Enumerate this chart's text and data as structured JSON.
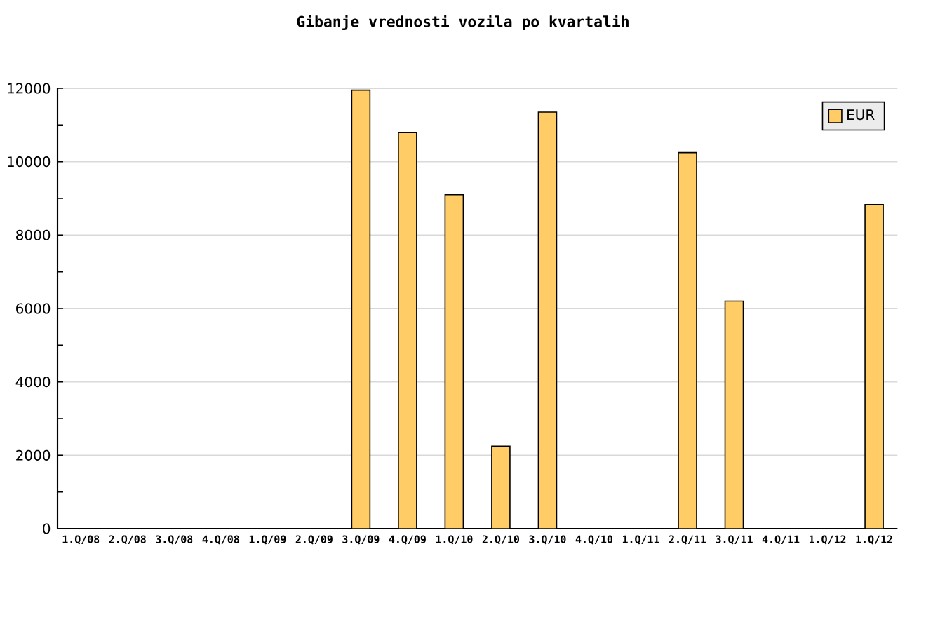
{
  "chart_data": {
    "type": "bar",
    "title": "Gibanje vrednosti vozila po kvartalih",
    "categories": [
      "1.Q/08",
      "2.Q/08",
      "3.Q/08",
      "4.Q/08",
      "1.Q/09",
      "2.Q/09",
      "3.Q/09",
      "4.Q/09",
      "1.Q/10",
      "2.Q/10",
      "3.Q/10",
      "4.Q/10",
      "1.Q/11",
      "2.Q/11",
      "3.Q/11",
      "4.Q/11",
      "1.Q/12",
      "1.Q/12"
    ],
    "series": [
      {
        "name": "EUR",
        "color": "#ffcc66",
        "values": [
          null,
          null,
          null,
          null,
          null,
          null,
          11950,
          10800,
          9100,
          2250,
          11350,
          null,
          null,
          10250,
          6200,
          null,
          null,
          8830
        ]
      }
    ],
    "ylim": [
      0,
      12000
    ],
    "yticks": [
      0,
      2000,
      4000,
      6000,
      8000,
      10000,
      12000
    ],
    "grid": "y",
    "legend": "top right"
  }
}
